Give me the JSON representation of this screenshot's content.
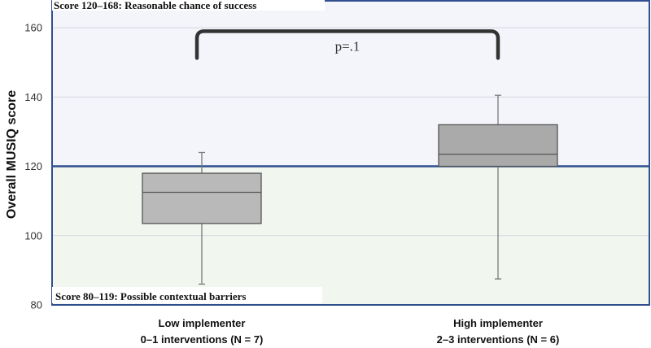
{
  "chart_data": {
    "type": "boxplot",
    "ylabel": "Overall MUSIQ score",
    "ylim": [
      80,
      168
    ],
    "yticks": [
      80,
      100,
      120,
      140,
      160
    ],
    "grid": true,
    "threshold": 120,
    "zones": [
      {
        "label": "Score 120–168: Reasonable chance of success",
        "range": [
          120,
          168
        ],
        "color": "#f4f4fb"
      },
      {
        "label": "Score 80–119: Possible contextual barriers",
        "range": [
          80,
          119
        ],
        "color": "#f1f6ee"
      }
    ],
    "categories": [
      {
        "line1": "Low implementer",
        "line2": "0–1 interventions (N = 7)"
      },
      {
        "line1": "High implementer",
        "line2": "2–3 interventions (N = 6)"
      }
    ],
    "boxes": [
      {
        "min": 86,
        "q1": 103.5,
        "median": 112.5,
        "q3": 118,
        "max": 124
      },
      {
        "min": 87.5,
        "q1": 120,
        "median": 123.5,
        "q3": 132,
        "max": 140.5
      }
    ],
    "annotation": {
      "text": "p=.1",
      "from": 0,
      "to": 1,
      "level": 159
    },
    "colors": {
      "box": "#b9b9b9",
      "box_high": "#aaaaaa",
      "stroke": "#555555",
      "frame": "#2f4f8f",
      "bracket": "#333333"
    }
  }
}
